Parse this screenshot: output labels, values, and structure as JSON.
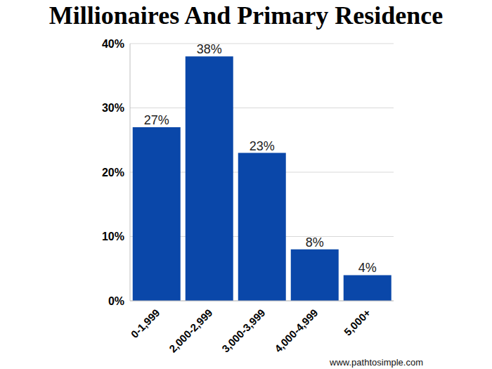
{
  "chart_data": {
    "type": "bar",
    "title": "Millionaires And Primary Residence",
    "categories": [
      "0-1,999",
      "2,000-2,999",
      "3,000-3,999",
      "4,000-4,999",
      "5,000+"
    ],
    "values": [
      27,
      38,
      23,
      8,
      4
    ],
    "value_labels": [
      "27%",
      "38%",
      "23%",
      "8%",
      "4%"
    ],
    "data_labels": true,
    "color": "#0a47a9",
    "ylim": [
      0,
      40
    ],
    "yticks": [
      {
        "value": 0,
        "label": "0%"
      },
      {
        "value": 10,
        "label": "10%"
      },
      {
        "value": 20,
        "label": "20%"
      },
      {
        "value": 30,
        "label": "30%"
      },
      {
        "value": 40,
        "label": "40%"
      }
    ],
    "grid": true,
    "annotations": [
      "www.pathtosimple.com"
    ]
  }
}
